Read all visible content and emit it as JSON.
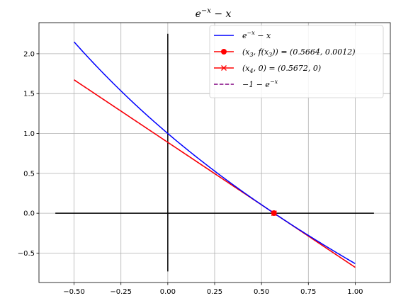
{
  "chart_data": {
    "type": "line",
    "title": "e^{-x} - x",
    "xlabel": "",
    "ylabel": "",
    "xlim": [
      -0.6874,
      1.1874
    ],
    "ylim": [
      -0.8686,
      2.3896
    ],
    "grid": true,
    "legend_placement": "top-right",
    "x_ticks": [
      "−0.50",
      "−0.25",
      "0.00",
      "0.25",
      "0.50",
      "0.75",
      "1.00"
    ],
    "y_ticks": [
      "−0.5",
      "0.0",
      "0.5",
      "1.0",
      "1.5",
      "2.0"
    ],
    "series": [
      {
        "name": "e^{-x} - x",
        "kind": "function",
        "function": "exp(-x) - x",
        "domain": [
          -0.5,
          1.0
        ],
        "color": "#0000ff",
        "style": "solid"
      },
      {
        "name": "(x_3, f(x_3)) = (0.5664, 0.0012)",
        "kind": "tangent",
        "slope": -1.5676,
        "through": [
          0.5664,
          0.0012
        ],
        "domain": [
          -0.5,
          1.0
        ],
        "marker_point": [
          0.5664,
          0.0012
        ],
        "marker": "circle",
        "color": "#ff0000",
        "style": "solid"
      },
      {
        "name": "(x_4, 0) = (0.5672, 0)",
        "kind": "point",
        "point": [
          0.5672,
          0
        ],
        "marker": "x",
        "color": "#ff0000",
        "style": "solid"
      },
      {
        "name": "−1 − e^{−x}",
        "kind": "line",
        "slope": -1.5672,
        "through": [
          0.5672,
          0
        ],
        "domain": [
          -0.5,
          1.0
        ],
        "color": "#800080",
        "style": "dashed"
      }
    ],
    "axes_lines": [
      {
        "name": "x-axis",
        "from": [
          -0.6,
          0
        ],
        "to": [
          1.1,
          0
        ],
        "color": "#000000"
      },
      {
        "name": "y-axis",
        "from": [
          0,
          -0.73
        ],
        "to": [
          0,
          2.25
        ],
        "color": "#000000"
      }
    ]
  },
  "legend": {
    "items": [
      {
        "color": "#0000ff",
        "style": "solid",
        "marker": "none",
        "label_parts": [
          [
            "e",
            "normal"
          ],
          [
            "−x",
            "sup"
          ],
          [
            " − x",
            "normal"
          ]
        ]
      },
      {
        "color": "#ff0000",
        "style": "solid",
        "marker": "circle",
        "label_parts": [
          [
            "(x",
            "normal"
          ],
          [
            "3",
            "sub"
          ],
          [
            ", f(x",
            "normal"
          ],
          [
            "3",
            "sub"
          ],
          [
            ")) = (0.5664, 0.0012)",
            "normal"
          ]
        ]
      },
      {
        "color": "#ff0000",
        "style": "solid",
        "marker": "x",
        "label_parts": [
          [
            "(x",
            "normal"
          ],
          [
            "4",
            "sub"
          ],
          [
            ", 0) = (0.5672, 0)",
            "normal"
          ]
        ]
      },
      {
        "color": "#800080",
        "style": "dashed",
        "marker": "none",
        "label_parts": [
          [
            "−1 − e",
            "normal"
          ],
          [
            "−x",
            "sup"
          ]
        ]
      }
    ]
  }
}
